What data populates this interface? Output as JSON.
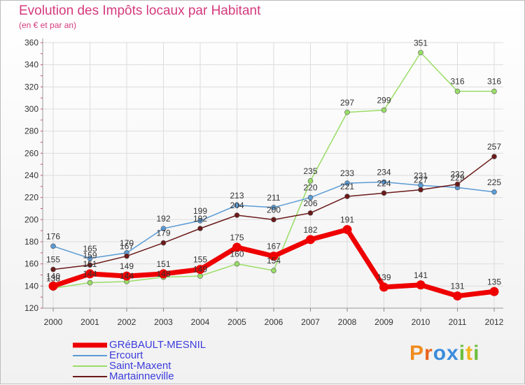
{
  "chart_data": {
    "type": "line",
    "title": "Evolution des Impôts locaux par Habitant",
    "subtitle": "(en € et par an)",
    "xlabel": "",
    "ylabel": "",
    "ylim": [
      120,
      360
    ],
    "yticks": [
      "120",
      "140",
      "160",
      "180",
      "200",
      "220",
      "240",
      "260",
      "280",
      "300",
      "320",
      "340",
      "360"
    ],
    "categories": [
      "2000",
      "2001",
      "2002",
      "2003",
      "2004",
      "2005",
      "2006",
      "2007",
      "2008",
      "2009",
      "2010",
      "2011",
      "2012"
    ],
    "series": [
      {
        "name": "Saint-Maxent",
        "color": "#99dd66",
        "values": [
          138,
          143,
          144,
          148,
          149,
          160,
          154,
          235,
          297,
          299,
          351,
          316,
          316
        ],
        "labels": [
          "138",
          "",
          "",
          "",
          "",
          "160",
          "154",
          "235",
          "297",
          "299",
          "351",
          "316",
          "316"
        ]
      },
      {
        "name": "Ercourt",
        "color": "#5b9bd5",
        "values": [
          176,
          165,
          170,
          192,
          199,
          213,
          211,
          220,
          233,
          234,
          231,
          229,
          225
        ],
        "labels": [
          "176",
          "165",
          "170",
          "192",
          "199",
          "213",
          "211",
          "220",
          "233",
          "234",
          "231",
          "229",
          "225"
        ]
      },
      {
        "name": "Martainneville",
        "color": "#6b1a1a",
        "values": [
          155,
          159,
          167,
          179,
          192,
          204,
          200,
          206,
          221,
          224,
          227,
          232,
          257
        ],
        "labels": [
          "155",
          "159",
          "167",
          "179",
          "192",
          "204",
          "200",
          "206",
          "221",
          "224",
          "227",
          "232",
          "257"
        ]
      },
      {
        "name": "GRéBAULT-MESNIL",
        "color": "#ee0000",
        "values": [
          140,
          151,
          149,
          151,
          155,
          175,
          167,
          182,
          191,
          139,
          141,
          131,
          135
        ],
        "labels": [
          "140",
          "151",
          "149",
          "151",
          "155",
          "175",
          "167",
          "182",
          "191",
          "139",
          "141",
          "131",
          "135"
        ],
        "extra_labels": [
          "",
          "144",
          "144",
          "148",
          "149",
          "",
          "",
          "",
          "",
          "",
          "",
          "",
          ""
        ]
      }
    ],
    "legend": [
      "GRéBAULT-MESNIL",
      "Ercourt",
      "Saint-Maxent",
      "Martainneville"
    ],
    "legend_position": "bottom-left"
  },
  "logo": {
    "text": "Proxiti"
  }
}
